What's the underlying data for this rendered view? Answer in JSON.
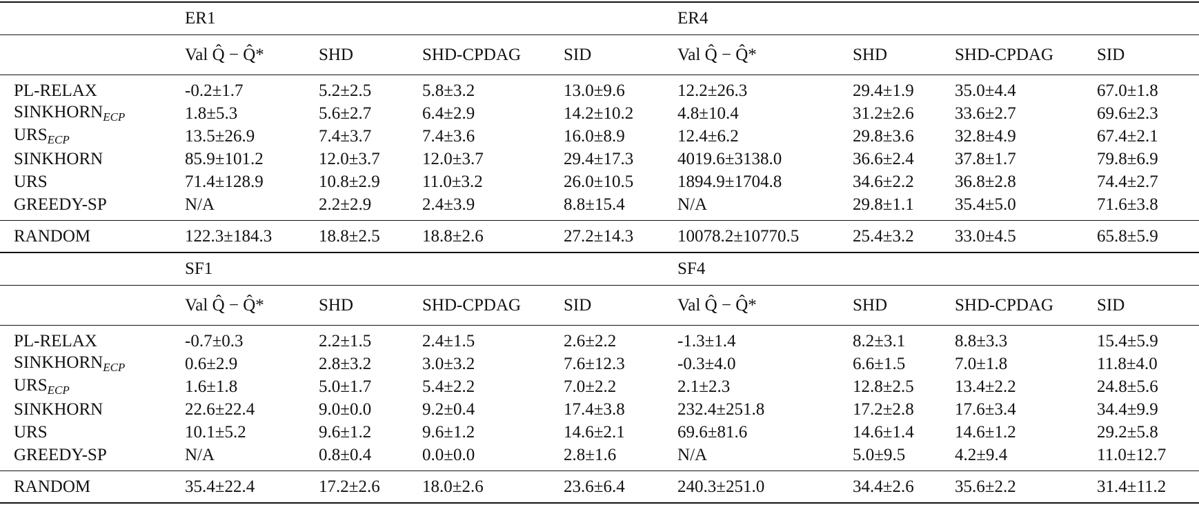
{
  "blocks": [
    {
      "groups": [
        "ER1",
        "ER4"
      ],
      "columns": [
        "Val Q̂ − Q̂*",
        "SHD",
        "SHD-CPDAG",
        "SID",
        "Val Q̂ − Q̂*",
        "SHD",
        "SHD-CPDAG",
        "SID"
      ],
      "rows": [
        {
          "method": {
            "name": "PL-RELAX"
          },
          "values": [
            "-0.2±1.7",
            "5.2±2.5",
            "5.8±3.2",
            "13.0±9.6",
            "12.2±26.3",
            "29.4±1.9",
            "35.0±4.4",
            "67.0±1.8"
          ]
        },
        {
          "method": {
            "name": "SINKHORN",
            "sub": "ECP"
          },
          "values": [
            "1.8±5.3",
            "5.6±2.7",
            "6.4±2.9",
            "14.2±10.2",
            "4.8±10.4",
            "31.2±2.6",
            "33.6±2.7",
            "69.6±2.3"
          ]
        },
        {
          "method": {
            "name": "URS",
            "sub": "ECP"
          },
          "values": [
            "13.5±26.9",
            "7.4±3.7",
            "7.4±3.6",
            "16.0±8.9",
            "12.4±6.2",
            "29.8±3.6",
            "32.8±4.9",
            "67.4±2.1"
          ]
        },
        {
          "method": {
            "name": "SINKHORN"
          },
          "values": [
            "85.9±101.2",
            "12.0±3.7",
            "12.0±3.7",
            "29.4±17.3",
            "4019.6±3138.0",
            "36.6±2.4",
            "37.8±1.7",
            "79.8±6.9"
          ]
        },
        {
          "method": {
            "name": "URS"
          },
          "values": [
            "71.4±128.9",
            "10.8±2.9",
            "11.0±3.2",
            "26.0±10.5",
            "1894.9±1704.8",
            "34.6±2.2",
            "36.8±2.8",
            "74.4±2.7"
          ]
        },
        {
          "method": {
            "name": "GREEDY-SP"
          },
          "values": [
            "N/A",
            "2.2±2.9",
            "2.4±3.9",
            "8.8±15.4",
            "N/A",
            "29.8±1.1",
            "35.4±5.0",
            "71.6±3.8"
          ]
        }
      ],
      "baseline": {
        "method": {
          "name": "RANDOM"
        },
        "values": [
          "122.3±184.3",
          "18.8±2.5",
          "18.8±2.6",
          "27.2±14.3",
          "10078.2±10770.5",
          "25.4±3.2",
          "33.0±4.5",
          "65.8±5.9"
        ]
      }
    },
    {
      "groups": [
        "SF1",
        "SF4"
      ],
      "columns": [
        "Val Q̂ − Q̂*",
        "SHD",
        "SHD-CPDAG",
        "SID",
        "Val Q̂ − Q̂*",
        "SHD",
        "SHD-CPDAG",
        "SID"
      ],
      "rows": [
        {
          "method": {
            "name": "PL-RELAX"
          },
          "values": [
            "-0.7±0.3",
            "2.2±1.5",
            "2.4±1.5",
            "2.6±2.2",
            "-1.3±1.4",
            "8.2±3.1",
            "8.8±3.3",
            "15.4±5.9"
          ]
        },
        {
          "method": {
            "name": "SINKHORN",
            "sub": "ECP"
          },
          "values": [
            "0.6±2.9",
            "2.8±3.2",
            "3.0±3.2",
            "7.6±12.3",
            "-0.3±4.0",
            "6.6±1.5",
            "7.0±1.8",
            "11.8±4.0"
          ]
        },
        {
          "method": {
            "name": "URS",
            "sub": "ECP"
          },
          "values": [
            "1.6±1.8",
            "5.0±1.7",
            "5.4±2.2",
            "7.0±2.2",
            "2.1±2.3",
            "12.8±2.5",
            "13.4±2.2",
            "24.8±5.6"
          ]
        },
        {
          "method": {
            "name": "SINKHORN"
          },
          "values": [
            "22.6±22.4",
            "9.0±0.0",
            "9.2±0.4",
            "17.4±3.8",
            "232.4±251.8",
            "17.2±2.8",
            "17.6±3.4",
            "34.4±9.9"
          ]
        },
        {
          "method": {
            "name": "URS"
          },
          "values": [
            "10.1±5.2",
            "9.6±1.2",
            "9.6±1.2",
            "14.6±2.1",
            "69.6±81.6",
            "14.6±1.4",
            "14.6±1.2",
            "29.2±5.8"
          ]
        },
        {
          "method": {
            "name": "GREEDY-SP"
          },
          "values": [
            "N/A",
            "0.8±0.4",
            "0.0±0.0",
            "2.8±1.6",
            "N/A",
            "5.0±9.5",
            "4.2±9.4",
            "11.0±12.7"
          ]
        }
      ],
      "baseline": {
        "method": {
          "name": "RANDOM"
        },
        "values": [
          "35.4±22.4",
          "17.2±2.6",
          "18.0±2.6",
          "23.6±6.4",
          "240.3±251.0",
          "34.4±2.6",
          "35.6±2.2",
          "31.4±11.2"
        ]
      }
    }
  ]
}
